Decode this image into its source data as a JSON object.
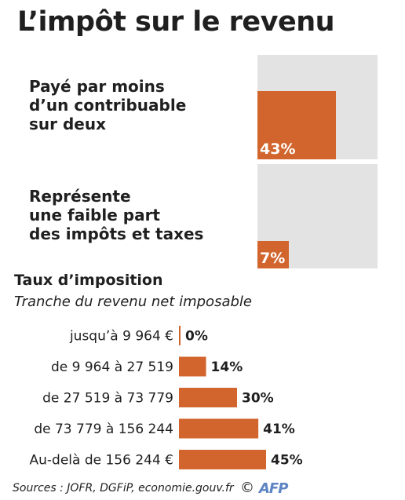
{
  "title": "L’impôt sur le revenu",
  "stats": [
    {
      "lines": [
        "Payé par moins",
        "d’un contribuable",
        "sur deux"
      ],
      "percent": 43,
      "label": "43%"
    },
    {
      "lines": [
        "Représente",
        "une faible part",
        "des impôts et taxes"
      ],
      "percent": 7,
      "label": "7%"
    }
  ],
  "rates": {
    "title": "Taux d’imposition",
    "subtitle": "Tranche du revenu net imposable"
  },
  "chart_data": {
    "type": "bar",
    "orientation": "horizontal",
    "categories": [
      "jusqu’à 9 964 €",
      "de 9 964 à 27 519",
      "de 27 519 à 73 779",
      "de 73 779 à 156 244",
      "Au-delà de 156 244 €"
    ],
    "values": [
      0,
      14,
      30,
      41,
      45
    ],
    "value_labels": [
      "0%",
      "14%",
      "30%",
      "41%",
      "45%"
    ],
    "color": "#d2652d",
    "xlim": [
      0,
      45
    ]
  },
  "footer": {
    "source": "Sources : JOFR, DGFiP, economie.gouv.fr",
    "copyright": "©",
    "logo": "AFP"
  },
  "colors": {
    "accent": "#d2652d",
    "box_background": "#e3e3e3"
  }
}
